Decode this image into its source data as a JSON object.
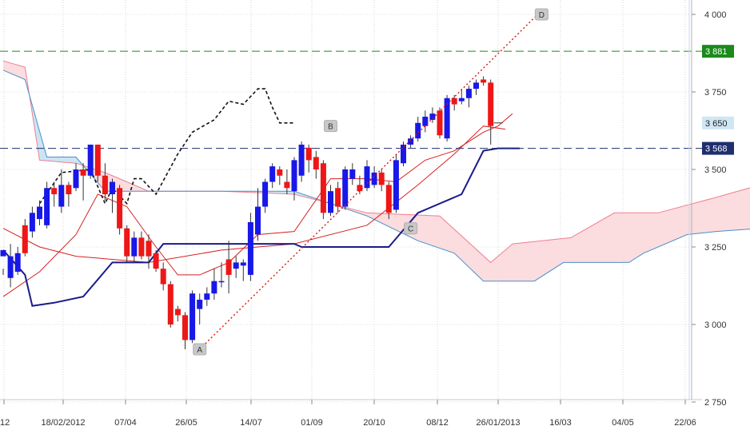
{
  "chart_data": {
    "type": "candlestick",
    "ylim": [
      2750,
      4000
    ],
    "y_ticks": [
      "4 000",
      "3 750",
      "3 500",
      "3 250",
      "3 000",
      "2 750"
    ],
    "x_ticks": [
      "12",
      "18/02/2012",
      "07/04",
      "26/05",
      "14/07",
      "01/09",
      "20/10",
      "08/12",
      "26/01/2013",
      "16/03",
      "04/05",
      "22/06"
    ],
    "grid": true,
    "candles": [
      [
        0,
        3220,
        3240,
        3180,
        3160
      ],
      [
        1,
        3150,
        3220,
        3260,
        3120
      ],
      [
        2,
        3170,
        3230,
        3250,
        3160
      ],
      [
        3,
        3320,
        3230,
        3340,
        3220
      ],
      [
        4,
        3300,
        3360,
        3380,
        3280
      ],
      [
        5,
        3340,
        3380,
        3400,
        3320
      ],
      [
        6,
        3320,
        3440,
        3460,
        3310
      ],
      [
        7,
        3440,
        3420,
        3460,
        3380
      ],
      [
        8,
        3380,
        3450,
        3500,
        3360
      ],
      [
        9,
        3450,
        3420,
        3460,
        3380
      ],
      [
        10,
        3440,
        3500,
        3520,
        3430
      ],
      [
        11,
        3500,
        3480,
        3520,
        3400
      ],
      [
        12,
        3480,
        3580,
        3580,
        3470
      ],
      [
        13,
        3580,
        3480,
        3580,
        3460
      ],
      [
        14,
        3480,
        3420,
        3520,
        3400
      ],
      [
        15,
        3420,
        3460,
        3470,
        3360
      ],
      [
        16,
        3440,
        3310,
        3450,
        3290
      ],
      [
        17,
        3310,
        3220,
        3320,
        3200
      ],
      [
        18,
        3220,
        3280,
        3300,
        3200
      ],
      [
        19,
        3280,
        3220,
        3300,
        3210
      ],
      [
        20,
        3270,
        3220,
        3290,
        3180
      ],
      [
        21,
        3230,
        3180,
        3240,
        3170
      ],
      [
        22,
        3180,
        3130,
        3200,
        3110
      ],
      [
        23,
        3130,
        3000,
        3140,
        2990
      ],
      [
        24,
        3050,
        3030,
        3060,
        3010
      ],
      [
        25,
        3030,
        2950,
        3040,
        2920
      ],
      [
        26,
        2950,
        3100,
        3110,
        2940
      ],
      [
        27,
        3050,
        3080,
        3100,
        3000
      ],
      [
        28,
        3080,
        3100,
        3120,
        3060
      ],
      [
        29,
        3100,
        3140,
        3180,
        3080
      ],
      [
        30,
        3140,
        3140,
        3200,
        3120
      ],
      [
        31,
        3210,
        3160,
        3270,
        3100
      ],
      [
        32,
        3180,
        3200,
        3220,
        3150
      ],
      [
        33,
        3190,
        3200,
        3210,
        3140
      ],
      [
        34,
        3160,
        3330,
        3360,
        3140
      ],
      [
        35,
        3290,
        3380,
        3440,
        3270
      ],
      [
        36,
        3380,
        3460,
        3470,
        3360
      ],
      [
        37,
        3460,
        3510,
        3520,
        3440
      ],
      [
        38,
        3500,
        3480,
        3510,
        3450
      ],
      [
        39,
        3460,
        3440,
        3500,
        3420
      ],
      [
        40,
        3430,
        3530,
        3540,
        3400
      ],
      [
        41,
        3480,
        3580,
        3590,
        3460
      ],
      [
        42,
        3570,
        3530,
        3580,
        3490
      ],
      [
        43,
        3540,
        3500,
        3560,
        3470
      ],
      [
        44,
        3520,
        3360,
        3530,
        3340
      ],
      [
        45,
        3360,
        3430,
        3450,
        3350
      ],
      [
        46,
        3440,
        3380,
        3460,
        3360
      ],
      [
        47,
        3380,
        3500,
        3510,
        3370
      ],
      [
        48,
        3470,
        3500,
        3520,
        3450
      ],
      [
        49,
        3450,
        3430,
        3480,
        3420
      ],
      [
        50,
        3440,
        3510,
        3530,
        3430
      ],
      [
        51,
        3450,
        3490,
        3510,
        3440
      ],
      [
        52,
        3490,
        3450,
        3500,
        3430
      ],
      [
        53,
        3450,
        3360,
        3460,
        3340
      ],
      [
        54,
        3370,
        3530,
        3550,
        3360
      ],
      [
        55,
        3520,
        3580,
        3590,
        3510
      ],
      [
        56,
        3580,
        3600,
        3610,
        3570
      ],
      [
        57,
        3600,
        3650,
        3670,
        3590
      ],
      [
        58,
        3640,
        3670,
        3690,
        3620
      ],
      [
        59,
        3660,
        3680,
        3700,
        3650
      ],
      [
        60,
        3690,
        3610,
        3700,
        3600
      ],
      [
        61,
        3600,
        3730,
        3740,
        3590
      ],
      [
        62,
        3730,
        3710,
        3740,
        3690
      ],
      [
        63,
        3720,
        3730,
        3760,
        3710
      ],
      [
        64,
        3730,
        3760,
        3770,
        3700
      ],
      [
        65,
        3760,
        3780,
        3790,
        3740
      ],
      [
        66,
        3790,
        3780,
        3800,
        3770
      ],
      [
        67,
        3780,
        3640,
        3790,
        3580
      ]
    ],
    "series": [
      {
        "values": [
          [
            0,
            3310
          ],
          [
            5,
            3250
          ],
          [
            10,
            3220
          ],
          [
            20,
            3200
          ],
          [
            30,
            3240
          ],
          [
            40,
            3260
          ],
          [
            50,
            3320
          ],
          [
            57,
            3450
          ],
          [
            62,
            3550
          ],
          [
            66,
            3640
          ],
          [
            69,
            3630
          ]
        ]
      },
      {
        "values": [
          [
            0,
            3090
          ],
          [
            5,
            3170
          ],
          [
            10,
            3290
          ],
          [
            13,
            3420
          ],
          [
            17,
            3380
          ],
          [
            21,
            3250
          ],
          [
            24,
            3160
          ],
          [
            27,
            3160
          ],
          [
            31,
            3200
          ],
          [
            35,
            3290
          ],
          [
            40,
            3300
          ],
          [
            45,
            3470
          ],
          [
            50,
            3470
          ],
          [
            54,
            3460
          ],
          [
            58,
            3530
          ],
          [
            62,
            3560
          ],
          [
            66,
            3620
          ],
          [
            68,
            3640
          ],
          [
            70,
            3680
          ]
        ]
      },
      {
        "values": [
          [
            0,
            3240
          ],
          [
            3,
            3160
          ],
          [
            4,
            3060
          ],
          [
            7,
            3070
          ],
          [
            11,
            3090
          ],
          [
            15,
            3200
          ],
          [
            20,
            3200
          ],
          [
            22,
            3260
          ],
          [
            40,
            3260
          ],
          [
            41,
            3250
          ],
          [
            53,
            3250
          ],
          [
            57,
            3360
          ],
          [
            61,
            3400
          ],
          [
            63,
            3420
          ],
          [
            66,
            3560
          ],
          [
            68,
            3568
          ],
          [
            71,
            3568
          ]
        ]
      },
      {
        "values": [
          [
            5,
            3390
          ],
          [
            8,
            3490
          ],
          [
            12,
            3500
          ],
          [
            14,
            3390
          ],
          [
            15,
            3440
          ],
          [
            17,
            3390
          ],
          [
            18,
            3470
          ],
          [
            19,
            3470
          ],
          [
            21,
            3420
          ],
          [
            24,
            3550
          ],
          [
            26,
            3620
          ],
          [
            29,
            3660
          ],
          [
            31,
            3720
          ],
          [
            33,
            3710
          ],
          [
            35,
            3760
          ],
          [
            36,
            3760
          ],
          [
            37,
            3700
          ],
          [
            38,
            3650
          ],
          [
            40,
            3650
          ]
        ]
      }
    ],
    "cloud": {
      "span_a": [
        [
          0,
          3850
        ],
        [
          3,
          3830
        ],
        [
          5,
          3530
        ],
        [
          10,
          3520
        ],
        [
          14,
          3490
        ],
        [
          20,
          3430
        ],
        [
          30,
          3430
        ],
        [
          40,
          3420
        ],
        [
          50,
          3360
        ],
        [
          60,
          3350
        ],
        [
          67,
          3200
        ],
        [
          70,
          3260
        ],
        [
          78,
          3280
        ],
        [
          84,
          3360
        ],
        [
          90,
          3360
        ],
        [
          98,
          3410
        ],
        [
          104,
          3450
        ]
      ],
      "span_b": [
        [
          0,
          3820
        ],
        [
          3,
          3790
        ],
        [
          6,
          3540
        ],
        [
          10,
          3540
        ],
        [
          14,
          3430
        ],
        [
          40,
          3430
        ],
        [
          50,
          3350
        ],
        [
          57,
          3270
        ],
        [
          62,
          3230
        ],
        [
          66,
          3140
        ],
        [
          73,
          3140
        ],
        [
          77,
          3200
        ],
        [
          86,
          3200
        ],
        [
          88,
          3230
        ],
        [
          94,
          3290
        ],
        [
          98,
          3300
        ],
        [
          104,
          3310
        ]
      ]
    },
    "hlines": [
      {
        "value": 3881,
        "label": "3 881",
        "color": "#1a8a1a"
      },
      {
        "value": 3568,
        "label": "3 568",
        "color": "#1f2e6e"
      }
    ],
    "price_badge": {
      "value": 3650,
      "label": "3 650"
    },
    "points": [
      {
        "label": "A",
        "x": 27,
        "y": 2920
      },
      {
        "label": "B",
        "x": 45,
        "y": 3640
      },
      {
        "label": "C",
        "x": 56,
        "y": 3310
      },
      {
        "label": "D",
        "x": 74,
        "y": 4000
      }
    ]
  }
}
